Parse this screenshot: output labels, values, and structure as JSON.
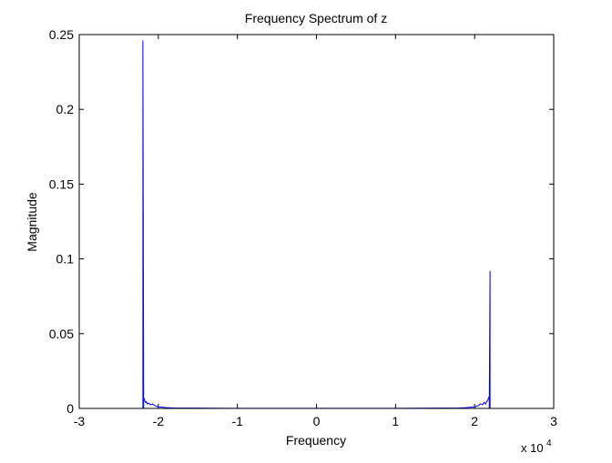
{
  "chart_data": {
    "type": "line",
    "title": "Frequency Spectrum of z",
    "xlabel": "Frequency",
    "ylabel": "Magnitude",
    "xlim": [
      -30000,
      30000
    ],
    "ylim": [
      0,
      0.25
    ],
    "x_multiplier_label": {
      "base": "x 10",
      "exponent": "4"
    },
    "x_ticks": [
      -30000,
      -20000,
      -10000,
      0,
      10000,
      20000,
      30000
    ],
    "x_tick_labels": [
      "-3",
      "-2",
      "-1",
      "0",
      "1",
      "2",
      "3"
    ],
    "y_ticks": [
      0,
      0.05,
      0.1,
      0.15,
      0.2,
      0.25
    ],
    "y_tick_labels": [
      "0",
      "0.05",
      "0.1",
      "0.15",
      "0.2",
      "0.25"
    ],
    "grid": false,
    "legend": "none",
    "series": [
      {
        "color": "#0000ff",
        "x": [
          -22050,
          -21950,
          -21950,
          -21850,
          -21850,
          -21750,
          -21700,
          -21600,
          -21500,
          -21400,
          -21200,
          -21000,
          -20700,
          -20500,
          -20300,
          -20000,
          -19500,
          -19000,
          -18000,
          -15000,
          -10000,
          -5000,
          0,
          5000,
          10000,
          15000,
          18000,
          19000,
          19500,
          20000,
          20300,
          20500,
          20700,
          21000,
          21200,
          21400,
          21500,
          21600,
          21700,
          21750,
          21850,
          21850,
          21950,
          21950,
          22050
        ],
        "y": [
          0.0,
          0.0,
          0.246,
          0.0,
          0.007,
          0.006,
          0.005,
          0.004,
          0.0045,
          0.003,
          0.0035,
          0.0025,
          0.003,
          0.002,
          0.0015,
          0.001,
          0.0008,
          0.0005,
          0.0003,
          0.0002,
          0.0001,
          0.0001,
          0.0001,
          0.0001,
          0.0001,
          0.0002,
          0.0003,
          0.0005,
          0.0008,
          0.001,
          0.0015,
          0.002,
          0.003,
          0.0025,
          0.004,
          0.003,
          0.0045,
          0.005,
          0.006,
          0.007,
          0.008,
          0.0,
          0.092,
          0.0,
          0.0
        ]
      }
    ]
  }
}
